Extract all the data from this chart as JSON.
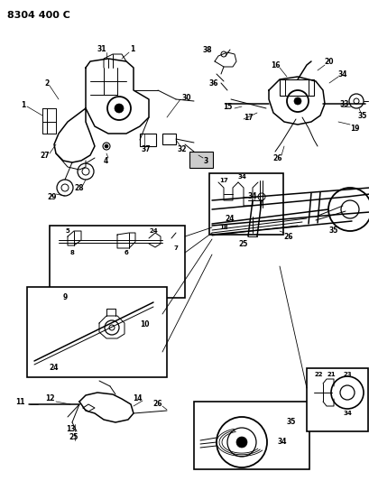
{
  "title": "8304 400 C",
  "bg_color": "#ffffff",
  "title_fontsize": 8,
  "fig_width": 4.1,
  "fig_height": 5.33,
  "dpi": 100
}
